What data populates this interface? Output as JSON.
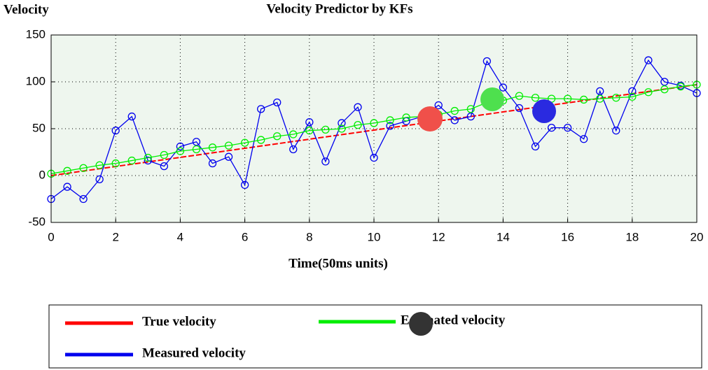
{
  "chart_data": {
    "type": "line",
    "title": "Velocity Predictor by KFs",
    "ylabel": "Velocity",
    "xlabel": "Time(50ms units)",
    "xlim": [
      0,
      20
    ],
    "ylim": [
      -50,
      150
    ],
    "xticks": [
      0,
      2,
      4,
      6,
      8,
      10,
      12,
      14,
      16,
      18,
      20
    ],
    "yticks": [
      -50,
      0,
      50,
      100,
      150
    ],
    "grid": true,
    "background": "#eef6ee",
    "series": [
      {
        "name": "True velocity",
        "color": "#ff0000",
        "dashed": true,
        "x": [
          0,
          20
        ],
        "values": [
          0,
          97
        ]
      },
      {
        "name": "Estimated velocity",
        "color": "#00ee00",
        "marker": "o",
        "x": [
          0,
          0.5,
          1,
          1.5,
          2,
          2.5,
          3,
          3.5,
          4,
          4.5,
          5,
          5.5,
          6,
          6.5,
          7,
          7.5,
          8,
          8.5,
          9,
          9.5,
          10,
          10.5,
          11,
          11.5,
          12,
          12.5,
          13,
          13.5,
          14,
          14.5,
          15,
          15.5,
          16,
          16.5,
          17,
          17.5,
          18,
          18.5,
          19,
          19.5,
          20
        ],
        "values": [
          2,
          5,
          8,
          11,
          13,
          16,
          19,
          22,
          26,
          28,
          30,
          32,
          35,
          38,
          42,
          44,
          48,
          49,
          50,
          54,
          56,
          59,
          62,
          63,
          65,
          69,
          71,
          78,
          80,
          85,
          83,
          82,
          82,
          81,
          82,
          83,
          84,
          89,
          92,
          95,
          97
        ]
      },
      {
        "name": "Measured velocity",
        "color": "#0000ee",
        "marker": "o",
        "x": [
          0,
          0.5,
          1,
          1.5,
          2,
          2.5,
          3,
          3.5,
          4,
          4.5,
          5,
          5.5,
          6,
          6.5,
          7,
          7.5,
          8,
          8.5,
          9,
          9.5,
          10,
          10.5,
          11,
          11.5,
          12,
          12.5,
          13,
          13.5,
          14,
          14.5,
          15,
          15.5,
          16,
          16.5,
          17,
          17.5,
          18,
          18.5,
          19,
          19.5,
          20
        ],
        "values": [
          -25,
          -12,
          -25,
          -4,
          48,
          63,
          16,
          10,
          31,
          36,
          13,
          20,
          -10,
          71,
          78,
          28,
          57,
          15,
          56,
          73,
          19,
          53,
          58,
          63,
          75,
          59,
          63,
          122,
          94,
          72,
          31,
          51,
          51,
          39,
          90,
          48,
          90,
          123,
          100,
          96,
          88
        ]
      }
    ]
  }
}
